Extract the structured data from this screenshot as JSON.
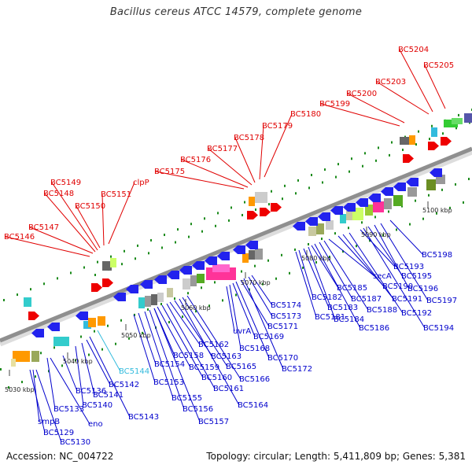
{
  "title": "Bacillus cereus ATCC 14579, complete genome",
  "footer": {
    "accession": "Accession: NC_004722",
    "stats": "Topology: circular; Length: 5,411,809 bp; Genes: 5,381"
  },
  "colors": {
    "upper_label": "#e00000",
    "lower_label": "#0000cc",
    "highlight_label": "#33bbdd",
    "backbone": "#888888",
    "dots": "#1a8a1a"
  },
  "kbp_ticks": [
    "5030 kbp",
    "5040 kbp",
    "5050 kbp",
    "5060 kbp",
    "5070 kbp",
    "5080 kbp",
    "5090 kbp",
    "5100 kbp"
  ],
  "upper_labels": [
    "BC5146",
    "BC5147",
    "BC5148",
    "BC5149",
    "BC5150",
    "BC5151",
    "clpP",
    "BC5175",
    "BC5176",
    "BC5177",
    "BC5178",
    "BC5179",
    "BC5180",
    "BC5199",
    "BC5200",
    "BC5203",
    "BC5204",
    "BC5205"
  ],
  "lower_labels": [
    "BC5129",
    "smpB",
    "BC5130",
    "BC5133",
    "eno",
    "BC5136",
    "BC5140",
    "BC5141",
    "BC5142",
    "BC5143",
    "BC5144",
    "BC5153",
    "BC5154",
    "BC5155",
    "BC5156",
    "BC5157",
    "BC5158",
    "BC5159",
    "BC5160",
    "BC5161",
    "BC5162",
    "BC5163",
    "BC5164",
    "BC5165",
    "BC5166",
    "uvrA",
    "BC5168",
    "BC5169",
    "BC5170",
    "BC5171",
    "BC5172",
    "BC5173",
    "BC5174",
    "BC5181",
    "BC5182",
    "BC5183",
    "BC5184",
    "BC5185",
    "BC5186",
    "BC5187",
    "BC5188",
    "secA",
    "BC5190",
    "BC5191",
    "BC5192",
    "BC5193",
    "BC5194",
    "BC5195",
    "BC5196",
    "BC5197",
    "BC5198"
  ]
}
